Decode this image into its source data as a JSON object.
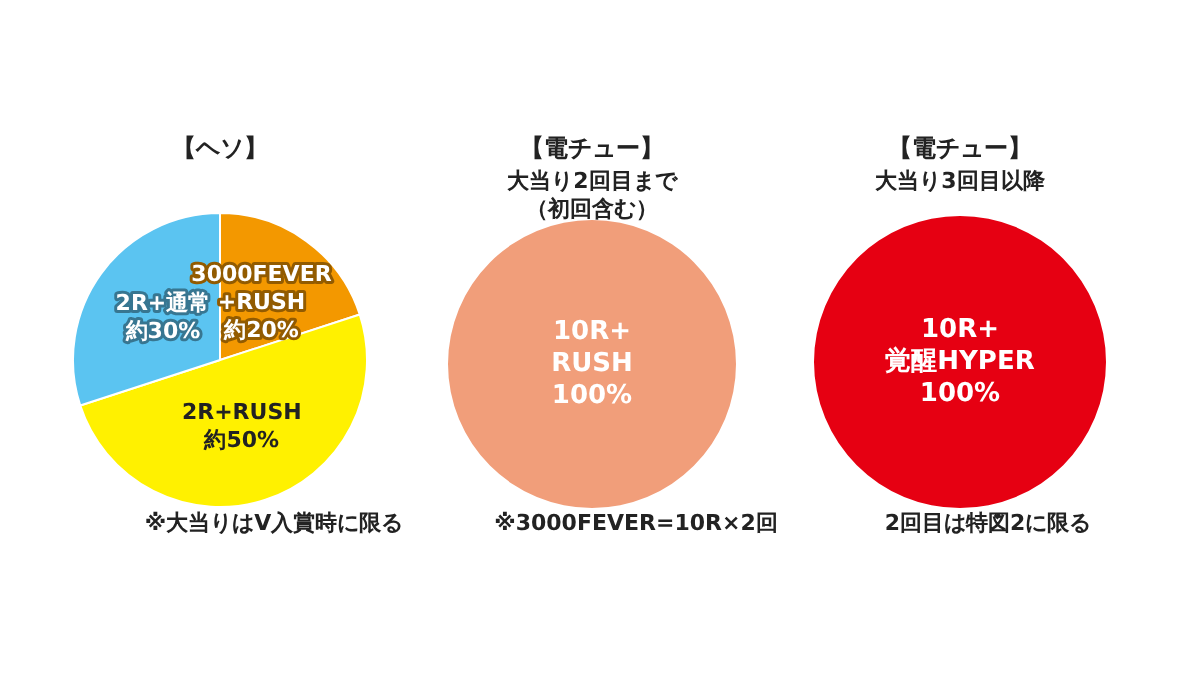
{
  "chart_data": [
    {
      "type": "pie",
      "title": "【ヘソ】",
      "categories": [
        "3000FEVER\n+RUSH",
        "2R+RUSH",
        "2R+通常"
      ],
      "values": [
        20,
        50,
        30
      ],
      "colors": [
        "#f39800",
        "#fff100",
        "#5bc4f1"
      ],
      "value_labels": [
        "約20%",
        "約50%",
        "約30%"
      ],
      "annotations": [
        "※大当りはV入賞時に限る"
      ]
    },
    {
      "type": "pie",
      "title": "【電チュー】",
      "subtitle": "大当り2回目まで（初回含む）",
      "categories": [
        "10R+\nRUSH"
      ],
      "values": [
        100
      ],
      "colors": [
        "#f19e7a"
      ],
      "value_labels": [
        "100%"
      ],
      "annotations": [
        "※3000FEVER=10R×2回"
      ]
    },
    {
      "type": "pie",
      "title": "【電チュー】",
      "subtitle": "大当り3回目以降",
      "categories": [
        "10R+\n覚醒HYPER"
      ],
      "values": [
        100
      ],
      "colors": [
        "#e60012"
      ],
      "value_labels": [
        "100%"
      ],
      "annotations": [
        "2回目は特図2に限る"
      ]
    }
  ]
}
